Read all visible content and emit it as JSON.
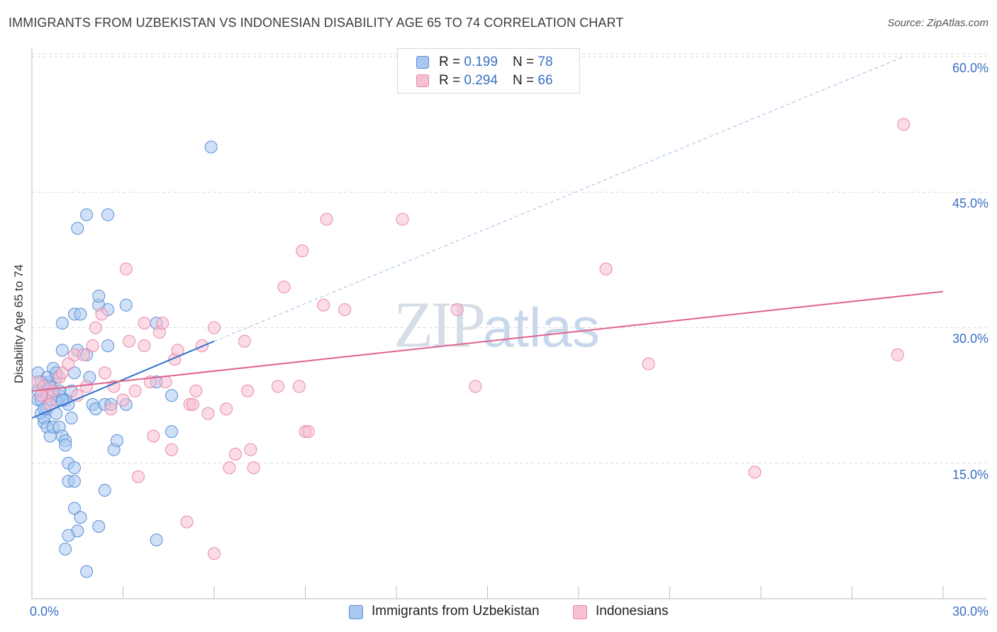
{
  "header": {
    "title": "IMMIGRANTS FROM UZBEKISTAN VS INDONESIAN DISABILITY AGE 65 TO 74 CORRELATION CHART",
    "source": "Source: ZipAtlas.com"
  },
  "watermark": {
    "zip": "ZIP",
    "atlas": "atlas"
  },
  "legend": {
    "series1": {
      "r_label": "R = ",
      "r_value": "0.199",
      "n_label": "N = ",
      "n_value": "78"
    },
    "series2": {
      "r_label": "R = ",
      "r_value": "0.294",
      "n_label": "N = ",
      "n_value": "66"
    }
  },
  "bottom_legend": {
    "series1": "Immigrants from Uzbekistan",
    "series2": "Indonesians"
  },
  "colors": {
    "series1_fill": "#a9c8f0",
    "series1_stroke": "#5a8fd6",
    "series1_line": "#2f6fce",
    "series2_fill": "#f7bfd2",
    "series2_stroke": "#e889ab",
    "series2_line": "#e0628f",
    "grid": "#d9d9d9",
    "tick_text": "#3a6fc4"
  },
  "chart_data": {
    "type": "scatter",
    "title": "IMMIGRANTS FROM UZBEKISTAN VS INDONESIAN DISABILITY AGE 65 TO 74 CORRELATION CHART",
    "xlabel": "",
    "ylabel": "Disability Age 65 to 74",
    "xlim": [
      0,
      30
    ],
    "ylim": [
      0,
      60
    ],
    "x_ticks": [
      "0.0%",
      "30.0%"
    ],
    "y_ticks": [
      "15.0%",
      "30.0%",
      "45.0%",
      "60.0%"
    ],
    "y_tick_values": [
      15,
      30,
      45,
      60
    ],
    "grid": true,
    "legend_position": "top-center",
    "series": [
      {
        "name": "Immigrants from Uzbekistan",
        "r": 0.199,
        "n": 78,
        "trend": {
          "x": [
            0,
            6.0
          ],
          "y": [
            20.0,
            28.5
          ]
        },
        "trend_dashed": {
          "x": [
            6.0,
            28.7
          ],
          "y": [
            28.5,
            60.0
          ]
        },
        "points": [
          [
            0.2,
            25.0
          ],
          [
            0.3,
            22.5
          ],
          [
            0.2,
            22.0
          ],
          [
            0.4,
            23.5
          ],
          [
            0.3,
            20.5
          ],
          [
            0.4,
            19.5
          ],
          [
            0.5,
            21.0
          ],
          [
            0.6,
            24.0
          ],
          [
            0.6,
            22.0
          ],
          [
            0.7,
            25.5
          ],
          [
            0.7,
            23.0
          ],
          [
            0.8,
            24.5
          ],
          [
            0.9,
            22.5
          ],
          [
            0.8,
            20.5
          ],
          [
            1.0,
            27.5
          ],
          [
            1.0,
            30.5
          ],
          [
            1.1,
            22.0
          ],
          [
            1.2,
            21.5
          ],
          [
            1.3,
            20.0
          ],
          [
            1.4,
            25.0
          ],
          [
            1.4,
            31.5
          ],
          [
            1.5,
            27.5
          ],
          [
            1.6,
            31.5
          ],
          [
            1.8,
            27.0
          ],
          [
            1.9,
            24.5
          ],
          [
            2.0,
            21.5
          ],
          [
            2.1,
            21.0
          ],
          [
            2.2,
            32.5
          ],
          [
            2.2,
            33.5
          ],
          [
            2.4,
            21.5
          ],
          [
            2.5,
            28.0
          ],
          [
            2.5,
            32.0
          ],
          [
            3.1,
            32.5
          ],
          [
            3.1,
            21.5
          ],
          [
            4.1,
            30.5
          ],
          [
            4.1,
            24.0
          ],
          [
            4.6,
            22.5
          ],
          [
            4.6,
            18.5
          ],
          [
            0.4,
            20.0
          ],
          [
            0.5,
            19.0
          ],
          [
            0.6,
            18.0
          ],
          [
            0.7,
            19.0
          ],
          [
            0.9,
            19.0
          ],
          [
            1.0,
            18.0
          ],
          [
            1.1,
            17.5
          ],
          [
            1.1,
            17.0
          ],
          [
            1.2,
            15.0
          ],
          [
            1.4,
            14.5
          ],
          [
            1.2,
            13.0
          ],
          [
            1.4,
            13.0
          ],
          [
            2.4,
            12.0
          ],
          [
            1.4,
            10.0
          ],
          [
            1.6,
            9.0
          ],
          [
            1.5,
            7.5
          ],
          [
            2.2,
            8.0
          ],
          [
            1.2,
            7.0
          ],
          [
            1.1,
            5.5
          ],
          [
            4.1,
            6.5
          ],
          [
            1.8,
            3.0
          ],
          [
            2.7,
            16.5
          ],
          [
            2.8,
            17.5
          ],
          [
            2.6,
            21.5
          ],
          [
            1.5,
            41.0
          ],
          [
            1.8,
            42.5
          ],
          [
            2.5,
            42.5
          ],
          [
            5.9,
            50.0
          ],
          [
            0.3,
            22.0
          ],
          [
            0.4,
            21.0
          ],
          [
            0.6,
            23.5
          ],
          [
            0.7,
            22.5
          ],
          [
            0.8,
            22.0
          ],
          [
            0.9,
            23.0
          ],
          [
            0.5,
            24.5
          ],
          [
            1.0,
            22.0
          ],
          [
            0.3,
            24.0
          ],
          [
            1.3,
            23.0
          ],
          [
            0.8,
            25.0
          ],
          [
            0.2,
            23.0
          ]
        ]
      },
      {
        "name": "Indonesians",
        "r": 0.294,
        "n": 66,
        "trend": {
          "x": [
            0,
            30.0
          ],
          "y": [
            23.0,
            34.0
          ]
        },
        "points": [
          [
            0.2,
            24.0
          ],
          [
            0.4,
            23.5
          ],
          [
            0.5,
            22.5
          ],
          [
            0.7,
            23.0
          ],
          [
            0.9,
            24.5
          ],
          [
            1.0,
            25.0
          ],
          [
            1.2,
            26.0
          ],
          [
            1.4,
            27.0
          ],
          [
            1.5,
            22.5
          ],
          [
            1.7,
            27.0
          ],
          [
            1.8,
            23.5
          ],
          [
            2.0,
            28.0
          ],
          [
            2.1,
            30.0
          ],
          [
            2.3,
            31.5
          ],
          [
            2.4,
            25.0
          ],
          [
            2.6,
            21.0
          ],
          [
            2.7,
            23.5
          ],
          [
            3.0,
            22.0
          ],
          [
            3.1,
            36.5
          ],
          [
            3.2,
            28.5
          ],
          [
            3.4,
            23.0
          ],
          [
            3.5,
            13.5
          ],
          [
            3.7,
            28.0
          ],
          [
            3.7,
            30.5
          ],
          [
            3.9,
            24.0
          ],
          [
            4.0,
            18.0
          ],
          [
            4.2,
            29.5
          ],
          [
            4.3,
            30.5
          ],
          [
            4.4,
            24.0
          ],
          [
            4.6,
            16.5
          ],
          [
            4.7,
            26.5
          ],
          [
            4.8,
            27.5
          ],
          [
            5.1,
            8.5
          ],
          [
            5.2,
            21.5
          ],
          [
            5.3,
            21.5
          ],
          [
            5.4,
            23.0
          ],
          [
            5.6,
            28.0
          ],
          [
            5.8,
            20.5
          ],
          [
            6.0,
            30.0
          ],
          [
            6.0,
            5.0
          ],
          [
            6.4,
            21.0
          ],
          [
            6.5,
            14.5
          ],
          [
            6.7,
            16.0
          ],
          [
            7.0,
            28.5
          ],
          [
            7.1,
            23.0
          ],
          [
            7.2,
            16.5
          ],
          [
            7.3,
            14.5
          ],
          [
            8.1,
            23.5
          ],
          [
            8.3,
            34.5
          ],
          [
            8.8,
            23.5
          ],
          [
            8.9,
            38.5
          ],
          [
            9.0,
            18.5
          ],
          [
            9.1,
            18.5
          ],
          [
            9.6,
            32.5
          ],
          [
            9.7,
            42.0
          ],
          [
            10.3,
            32.0
          ],
          [
            12.2,
            42.0
          ],
          [
            14.0,
            32.0
          ],
          [
            14.6,
            23.5
          ],
          [
            18.9,
            36.5
          ],
          [
            20.3,
            26.0
          ],
          [
            23.8,
            14.0
          ],
          [
            28.5,
            27.0
          ],
          [
            28.7,
            52.5
          ],
          [
            0.3,
            22.5
          ],
          [
            0.6,
            21.5
          ]
        ]
      }
    ]
  }
}
